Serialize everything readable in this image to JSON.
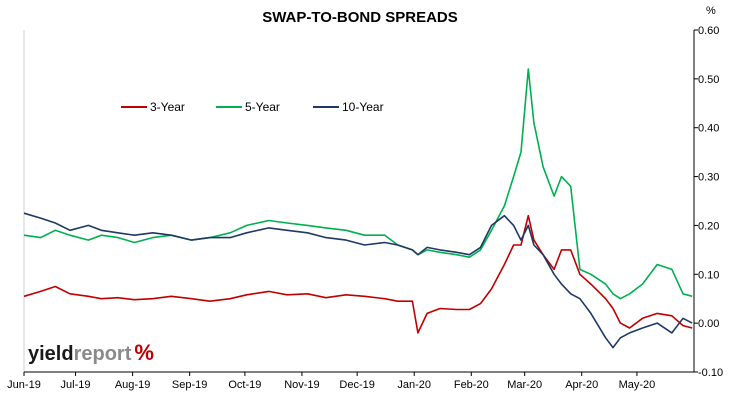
{
  "chart_data": {
    "type": "line",
    "title": "SWAP-TO-BOND SPREADS",
    "ylabel": "%",
    "ylim": [
      -0.1,
      0.6
    ],
    "yticks": [
      "0.60",
      "0.50",
      "0.40",
      "0.30",
      "0.20",
      "0.10",
      "0.00",
      "-0.10"
    ],
    "xticks": [
      "Jun-19",
      "Jul-19",
      "Aug-19",
      "Sep-19",
      "Oct-19",
      "Nov-19",
      "Dec-19",
      "Jan-20",
      "Feb-20",
      "Mar-20",
      "Apr-20",
      "May-20"
    ],
    "grid": false,
    "legend_position": "top-left",
    "x_start": "2019-06-03",
    "series": [
      {
        "name": "3-Year",
        "color": "#c00000",
        "points": [
          [
            "2019-06-03",
            0.055
          ],
          [
            "2019-06-12",
            0.065
          ],
          [
            "2019-06-20",
            0.075
          ],
          [
            "2019-06-28",
            0.06
          ],
          [
            "2019-07-08",
            0.055
          ],
          [
            "2019-07-15",
            0.05
          ],
          [
            "2019-07-24",
            0.052
          ],
          [
            "2019-08-02",
            0.048
          ],
          [
            "2019-08-12",
            0.05
          ],
          [
            "2019-08-22",
            0.055
          ],
          [
            "2019-09-02",
            0.05
          ],
          [
            "2019-09-12",
            0.045
          ],
          [
            "2019-09-23",
            0.05
          ],
          [
            "2019-10-02",
            0.058
          ],
          [
            "2019-10-14",
            0.065
          ],
          [
            "2019-10-24",
            0.058
          ],
          [
            "2019-11-04",
            0.06
          ],
          [
            "2019-11-14",
            0.052
          ],
          [
            "2019-11-25",
            0.058
          ],
          [
            "2019-12-05",
            0.055
          ],
          [
            "2019-12-16",
            0.05
          ],
          [
            "2019-12-23",
            0.045
          ],
          [
            "2019-12-31",
            0.045
          ],
          [
            "2020-01-03",
            -0.02
          ],
          [
            "2020-01-08",
            0.02
          ],
          [
            "2020-01-15",
            0.03
          ],
          [
            "2020-01-24",
            0.028
          ],
          [
            "2020-01-31",
            0.028
          ],
          [
            "2020-02-06",
            0.04
          ],
          [
            "2020-02-12",
            0.07
          ],
          [
            "2020-02-19",
            0.12
          ],
          [
            "2020-02-24",
            0.16
          ],
          [
            "2020-02-28",
            0.16
          ],
          [
            "2020-03-03",
            0.22
          ],
          [
            "2020-03-06",
            0.17
          ],
          [
            "2020-03-11",
            0.14
          ],
          [
            "2020-03-17",
            0.11
          ],
          [
            "2020-03-21",
            0.15
          ],
          [
            "2020-03-26",
            0.15
          ],
          [
            "2020-03-31",
            0.1
          ],
          [
            "2020-04-06",
            0.08
          ],
          [
            "2020-04-14",
            0.05
          ],
          [
            "2020-04-18",
            0.03
          ],
          [
            "2020-04-22",
            0.0
          ],
          [
            "2020-04-27",
            -0.01
          ],
          [
            "2020-05-04",
            0.01
          ],
          [
            "2020-05-12",
            0.02
          ],
          [
            "2020-05-20",
            0.015
          ],
          [
            "2020-05-26",
            -0.005
          ],
          [
            "2020-05-31",
            -0.01
          ]
        ]
      },
      {
        "name": "5-Year",
        "color": "#00b050",
        "points": [
          [
            "2019-06-03",
            0.18
          ],
          [
            "2019-06-12",
            0.175
          ],
          [
            "2019-06-20",
            0.19
          ],
          [
            "2019-06-28",
            0.18
          ],
          [
            "2019-07-08",
            0.17
          ],
          [
            "2019-07-15",
            0.18
          ],
          [
            "2019-07-24",
            0.175
          ],
          [
            "2019-08-02",
            0.165
          ],
          [
            "2019-08-12",
            0.175
          ],
          [
            "2019-08-22",
            0.18
          ],
          [
            "2019-09-02",
            0.17
          ],
          [
            "2019-09-12",
            0.175
          ],
          [
            "2019-09-23",
            0.185
          ],
          [
            "2019-10-02",
            0.2
          ],
          [
            "2019-10-14",
            0.21
          ],
          [
            "2019-10-24",
            0.205
          ],
          [
            "2019-11-04",
            0.2
          ],
          [
            "2019-11-14",
            0.195
          ],
          [
            "2019-11-25",
            0.19
          ],
          [
            "2019-12-05",
            0.18
          ],
          [
            "2019-12-16",
            0.18
          ],
          [
            "2019-12-23",
            0.16
          ],
          [
            "2019-12-31",
            0.15
          ],
          [
            "2020-01-03",
            0.14
          ],
          [
            "2020-01-08",
            0.15
          ],
          [
            "2020-01-15",
            0.145
          ],
          [
            "2020-01-24",
            0.14
          ],
          [
            "2020-01-31",
            0.135
          ],
          [
            "2020-02-06",
            0.15
          ],
          [
            "2020-02-12",
            0.19
          ],
          [
            "2020-02-19",
            0.24
          ],
          [
            "2020-02-24",
            0.3
          ],
          [
            "2020-02-28",
            0.35
          ],
          [
            "2020-03-03",
            0.52
          ],
          [
            "2020-03-06",
            0.41
          ],
          [
            "2020-03-11",
            0.32
          ],
          [
            "2020-03-17",
            0.26
          ],
          [
            "2020-03-21",
            0.3
          ],
          [
            "2020-03-26",
            0.28
          ],
          [
            "2020-03-31",
            0.11
          ],
          [
            "2020-04-06",
            0.1
          ],
          [
            "2020-04-14",
            0.08
          ],
          [
            "2020-04-18",
            0.06
          ],
          [
            "2020-04-22",
            0.05
          ],
          [
            "2020-04-27",
            0.06
          ],
          [
            "2020-05-04",
            0.08
          ],
          [
            "2020-05-12",
            0.12
          ],
          [
            "2020-05-20",
            0.11
          ],
          [
            "2020-05-26",
            0.06
          ],
          [
            "2020-05-31",
            0.055
          ]
        ]
      },
      {
        "name": "10-Year",
        "color": "#1f3864",
        "points": [
          [
            "2019-06-03",
            0.225
          ],
          [
            "2019-06-12",
            0.215
          ],
          [
            "2019-06-20",
            0.205
          ],
          [
            "2019-06-28",
            0.19
          ],
          [
            "2019-07-08",
            0.2
          ],
          [
            "2019-07-15",
            0.19
          ],
          [
            "2019-07-24",
            0.185
          ],
          [
            "2019-08-02",
            0.18
          ],
          [
            "2019-08-12",
            0.185
          ],
          [
            "2019-08-22",
            0.18
          ],
          [
            "2019-09-02",
            0.17
          ],
          [
            "2019-09-12",
            0.175
          ],
          [
            "2019-09-23",
            0.175
          ],
          [
            "2019-10-02",
            0.185
          ],
          [
            "2019-10-14",
            0.195
          ],
          [
            "2019-10-24",
            0.19
          ],
          [
            "2019-11-04",
            0.185
          ],
          [
            "2019-11-14",
            0.175
          ],
          [
            "2019-11-25",
            0.17
          ],
          [
            "2019-12-05",
            0.16
          ],
          [
            "2019-12-16",
            0.165
          ],
          [
            "2019-12-23",
            0.16
          ],
          [
            "2019-12-31",
            0.15
          ],
          [
            "2020-01-03",
            0.14
          ],
          [
            "2020-01-08",
            0.155
          ],
          [
            "2020-01-15",
            0.15
          ],
          [
            "2020-01-24",
            0.145
          ],
          [
            "2020-01-31",
            0.14
          ],
          [
            "2020-02-06",
            0.155
          ],
          [
            "2020-02-12",
            0.2
          ],
          [
            "2020-02-19",
            0.22
          ],
          [
            "2020-02-24",
            0.2
          ],
          [
            "2020-02-28",
            0.17
          ],
          [
            "2020-03-03",
            0.2
          ],
          [
            "2020-03-06",
            0.16
          ],
          [
            "2020-03-11",
            0.14
          ],
          [
            "2020-03-17",
            0.1
          ],
          [
            "2020-03-21",
            0.08
          ],
          [
            "2020-03-26",
            0.06
          ],
          [
            "2020-03-31",
            0.05
          ],
          [
            "2020-04-06",
            0.02
          ],
          [
            "2020-04-14",
            -0.03
          ],
          [
            "2020-04-18",
            -0.05
          ],
          [
            "2020-04-22",
            -0.03
          ],
          [
            "2020-04-27",
            -0.02
          ],
          [
            "2020-05-04",
            -0.01
          ],
          [
            "2020-05-12",
            0.0
          ],
          [
            "2020-05-20",
            -0.02
          ],
          [
            "2020-05-26",
            0.01
          ],
          [
            "2020-05-31",
            0.0
          ]
        ]
      }
    ]
  },
  "logo": {
    "part1": "yield",
    "part2": "report",
    "part3": "%"
  }
}
